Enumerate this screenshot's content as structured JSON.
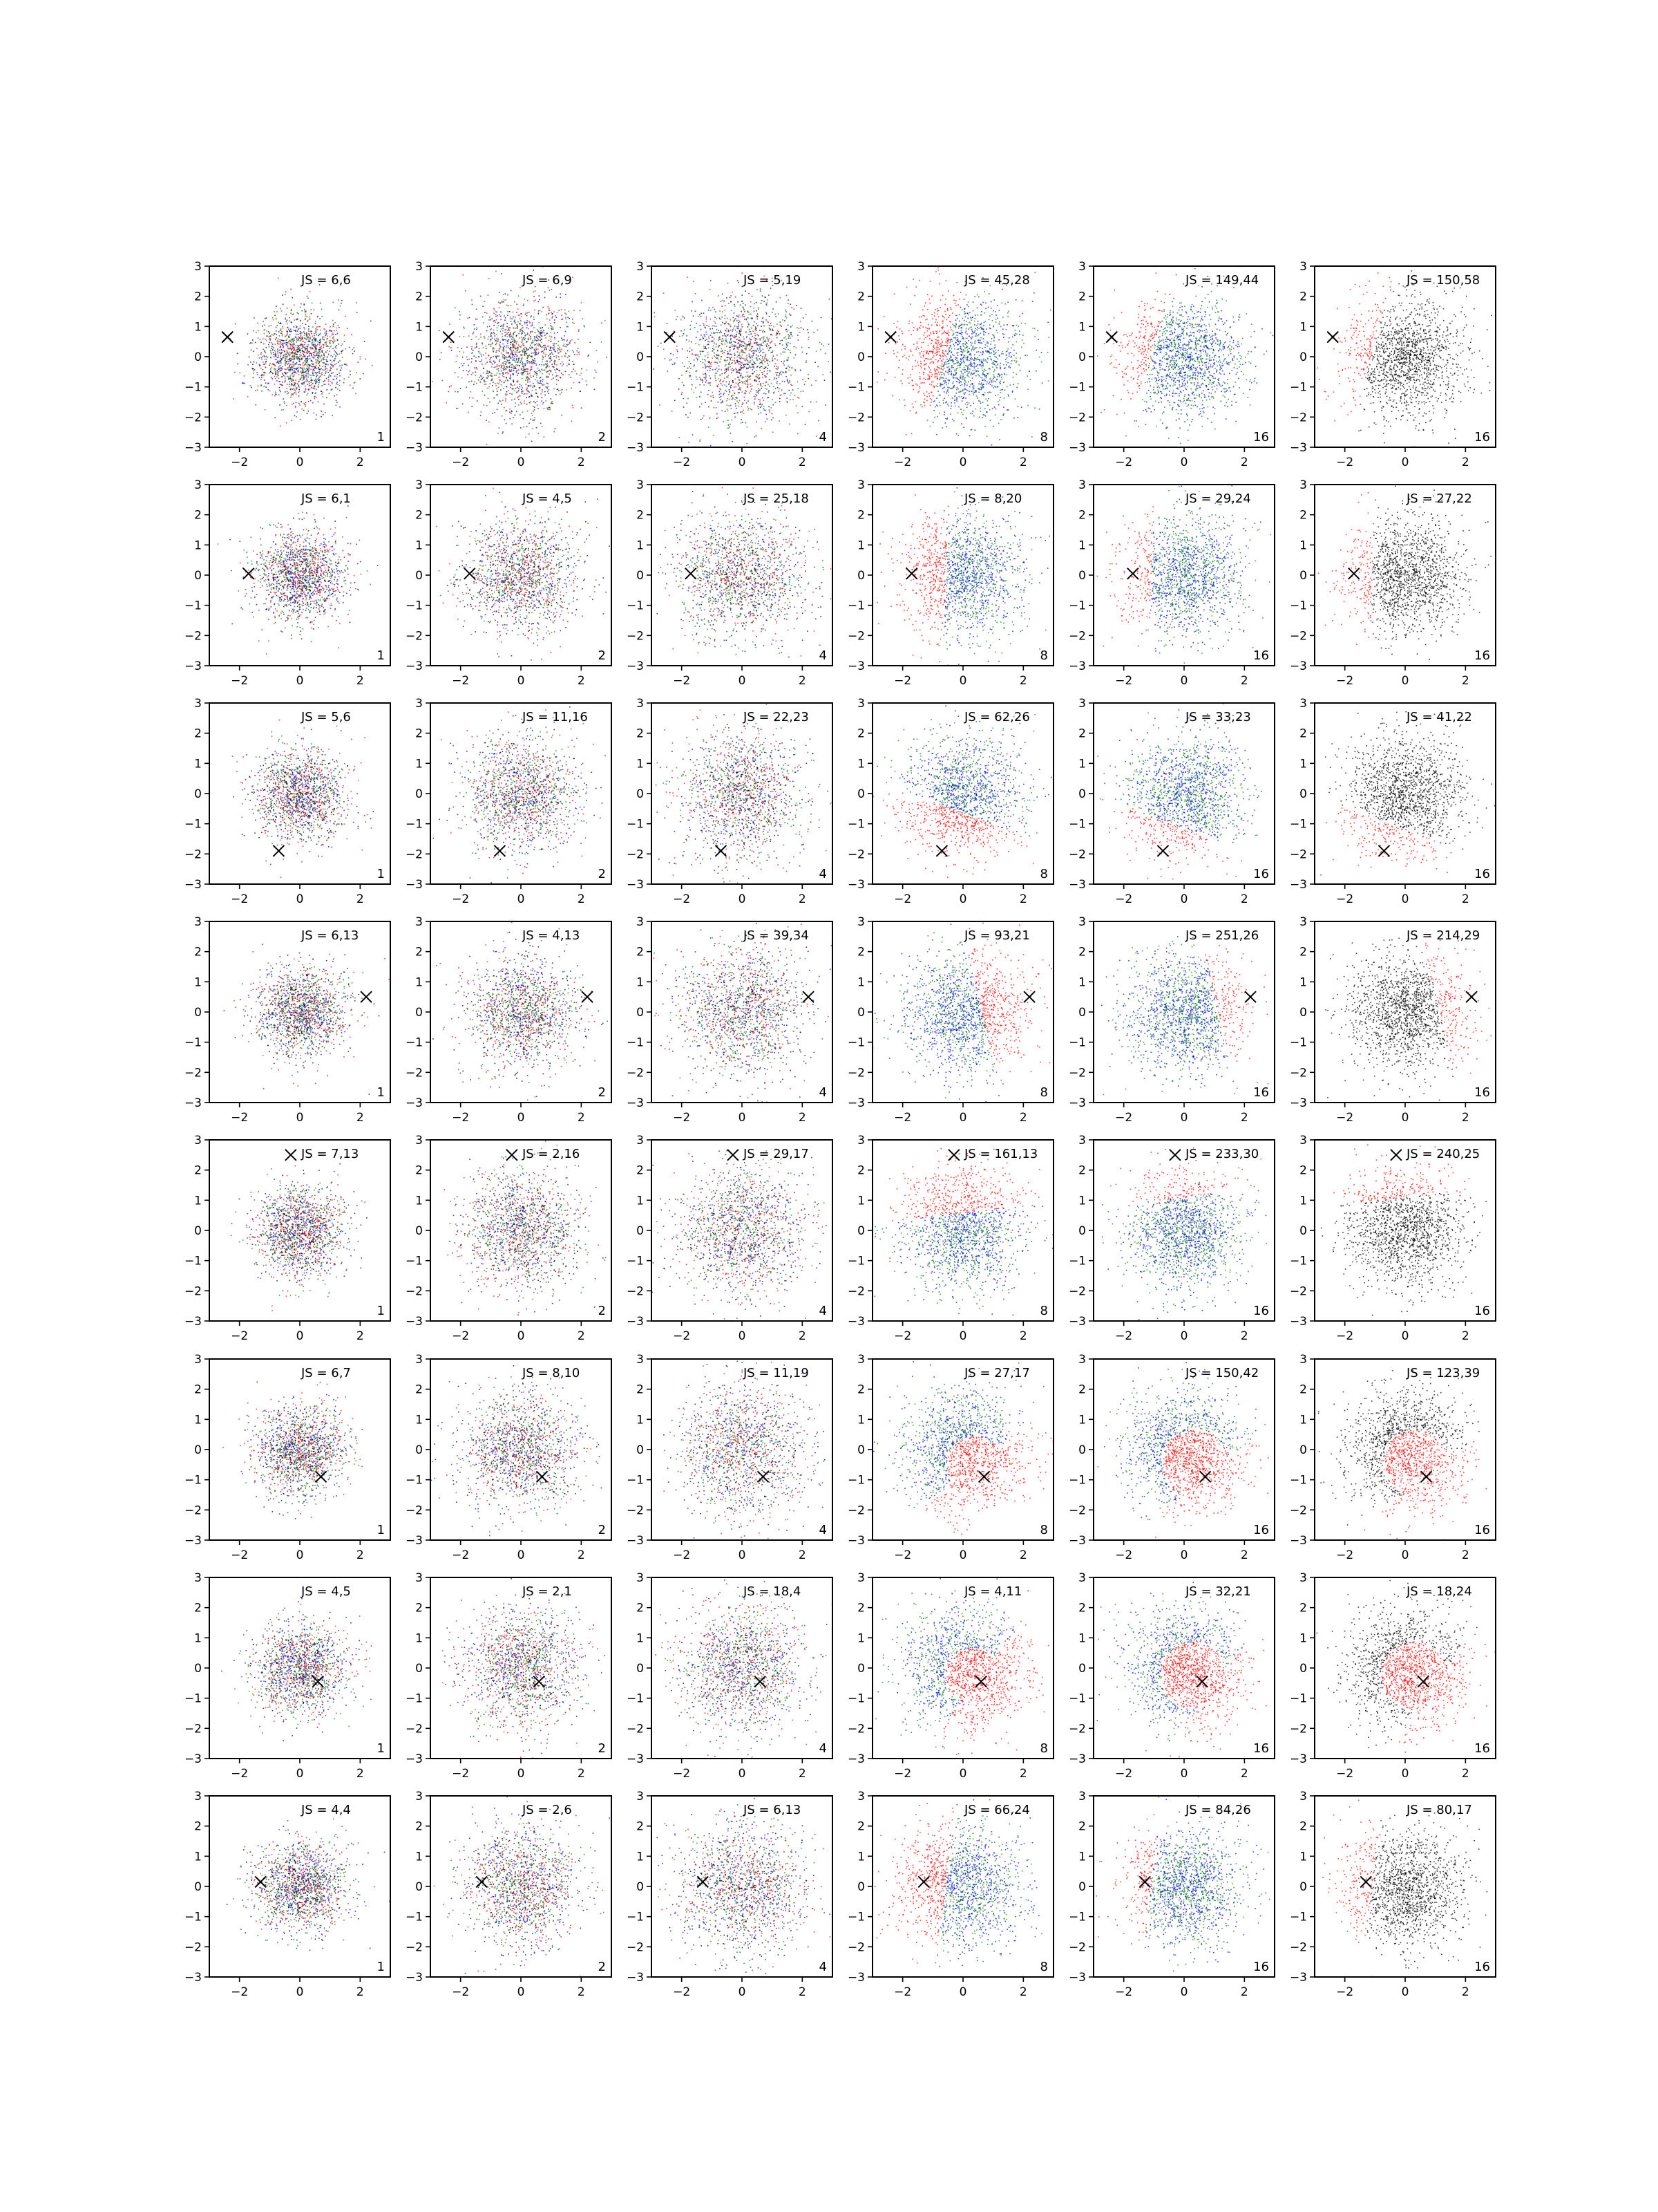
{
  "chart_data": {
    "type": "scatter",
    "grid": false,
    "xlim": [
      -3,
      3
    ],
    "ylim": [
      -3,
      3
    ],
    "xticks": [
      "−2",
      "0",
      "2"
    ],
    "yticks": [
      "3",
      "2",
      "1",
      "0",
      "−1",
      "−2",
      "−3"
    ],
    "colors": {
      "red": "#ff0000",
      "green": "#008000",
      "blue": "#0000ff",
      "black": "#000000"
    },
    "rows": [
      {
        "marker": [
          -2.4,
          0.65
        ],
        "panels": [
          {
            "js": "JS = 6,6",
            "m": "1"
          },
          {
            "js": "JS = 6,9",
            "m": "2"
          },
          {
            "js": "JS = 5,19",
            "m": "4"
          },
          {
            "js": "JS = 45,28",
            "m": "8"
          },
          {
            "js": "JS = 149,44",
            "m": "16"
          },
          {
            "js": "JS = 150,58",
            "m": "16"
          }
        ]
      },
      {
        "marker": [
          -1.7,
          0.05
        ],
        "panels": [
          {
            "js": "JS = 6,1",
            "m": "1"
          },
          {
            "js": "JS = 4,5",
            "m": "2"
          },
          {
            "js": "JS = 25,18",
            "m": "4"
          },
          {
            "js": "JS = 8,20",
            "m": "8"
          },
          {
            "js": "JS = 29,24",
            "m": "16"
          },
          {
            "js": "JS = 27,22",
            "m": "16"
          }
        ]
      },
      {
        "marker": [
          -0.7,
          -1.9
        ],
        "panels": [
          {
            "js": "JS = 5,6",
            "m": "1"
          },
          {
            "js": "JS = 11,16",
            "m": "2"
          },
          {
            "js": "JS = 22,23",
            "m": "4"
          },
          {
            "js": "JS = 62,26",
            "m": "8"
          },
          {
            "js": "JS = 33,23",
            "m": "16"
          },
          {
            "js": "JS = 41,22",
            "m": "16"
          }
        ]
      },
      {
        "marker": [
          2.2,
          0.5
        ],
        "panels": [
          {
            "js": "JS = 6,13",
            "m": "1"
          },
          {
            "js": "JS = 4,13",
            "m": "2"
          },
          {
            "js": "JS = 39,34",
            "m": "4"
          },
          {
            "js": "JS = 93,21",
            "m": "8"
          },
          {
            "js": "JS = 251,26",
            "m": "16"
          },
          {
            "js": "JS = 214,29",
            "m": "16"
          }
        ]
      },
      {
        "marker": [
          -0.3,
          2.5
        ],
        "panels": [
          {
            "js": "JS = 7,13",
            "m": "1"
          },
          {
            "js": "JS = 2,16",
            "m": "2"
          },
          {
            "js": "JS = 29,17",
            "m": "4"
          },
          {
            "js": "JS = 161,13",
            "m": "8"
          },
          {
            "js": "JS = 233,30",
            "m": "16"
          },
          {
            "js": "JS = 240,25",
            "m": "16"
          }
        ]
      },
      {
        "marker": [
          0.7,
          -0.9
        ],
        "panels": [
          {
            "js": "JS = 6,7",
            "m": "1"
          },
          {
            "js": "JS = 8,10",
            "m": "2"
          },
          {
            "js": "JS = 11,19",
            "m": "4"
          },
          {
            "js": "JS = 27,17",
            "m": "8"
          },
          {
            "js": "JS = 150,42",
            "m": "16"
          },
          {
            "js": "JS = 123,39",
            "m": "16"
          }
        ]
      },
      {
        "marker": [
          0.6,
          -0.45
        ],
        "panels": [
          {
            "js": "JS = 4,5",
            "m": "1"
          },
          {
            "js": "JS = 2,1",
            "m": "2"
          },
          {
            "js": "JS = 18,4",
            "m": "4"
          },
          {
            "js": "JS = 4,11",
            "m": "8"
          },
          {
            "js": "JS = 32,21",
            "m": "16"
          },
          {
            "js": "JS = 18,24",
            "m": "16"
          }
        ]
      },
      {
        "marker": [
          -1.3,
          0.15
        ],
        "panels": [
          {
            "js": "JS = 4,4",
            "m": "1"
          },
          {
            "js": "JS = 2,6",
            "m": "2"
          },
          {
            "js": "JS = 6,13",
            "m": "4"
          },
          {
            "js": "JS = 66,24",
            "m": "8"
          },
          {
            "js": "JS = 84,26",
            "m": "16"
          },
          {
            "js": "JS = 80,17",
            "m": "16"
          }
        ]
      }
    ]
  }
}
